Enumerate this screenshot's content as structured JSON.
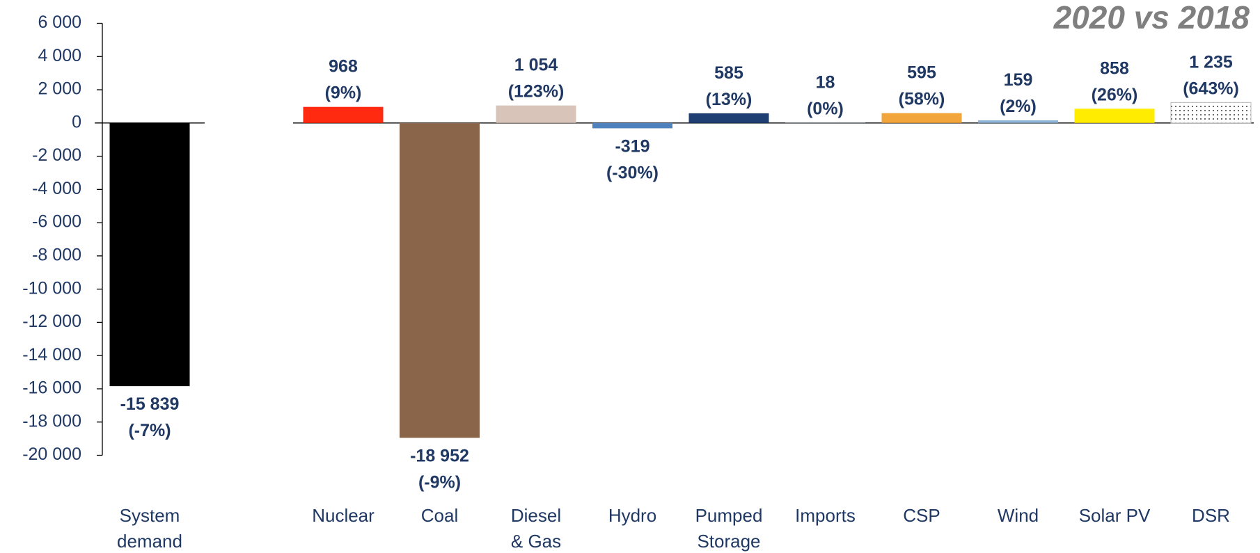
{
  "chart_data": {
    "type": "bar",
    "title": "2020 vs 2018",
    "categories": [
      "System\ndemand",
      "Nuclear",
      "Coal",
      "Diesel\n& Gas",
      "Hydro",
      "Pumped\nStorage",
      "Imports",
      "CSP",
      "Wind",
      "Solar PV",
      "DSR"
    ],
    "values": [
      -15839,
      968,
      -18952,
      1054,
      -319,
      585,
      18,
      595,
      159,
      858,
      1235
    ],
    "value_labels": [
      "-15 839\n(-7%)",
      "968\n(9%)",
      "-18 952\n(-9%)",
      "1 054\n(123%)",
      "-319\n(-30%)",
      "585\n(13%)",
      "18\n(0%)",
      "595\n(58%)",
      "159\n(2%)",
      "858\n(26%)",
      "1 235\n(643%)"
    ],
    "colors": [
      "#000000",
      "#ff2a10",
      "#8a6549",
      "#d8c4b8",
      "#4f81bd",
      "#1f3f73",
      "#9aa7b5",
      "#f2a53a",
      "#8fb4d8",
      "#ffec00",
      "#ffffff"
    ],
    "patterns": [
      null,
      null,
      null,
      null,
      null,
      null,
      null,
      null,
      null,
      null,
      "dots"
    ],
    "ylim": [
      -20000,
      6000
    ],
    "yticks": [
      {
        "value": 6000,
        "label": "6 000"
      },
      {
        "value": 4000,
        "label": "4 000"
      },
      {
        "value": 2000,
        "label": "2 000"
      },
      0,
      {
        "value": -2000,
        "label": "-2 000"
      },
      {
        "value": -4000,
        "label": "-4 000"
      },
      {
        "value": -6000,
        "label": "-6 000"
      },
      {
        "value": -8000,
        "label": "-8 000"
      },
      {
        "value": -10000,
        "label": "-10 000"
      },
      {
        "value": -12000,
        "label": "-12 000"
      },
      {
        "value": -14000,
        "label": "-14 000"
      },
      {
        "value": -16000,
        "label": "-16 000"
      },
      {
        "value": -18000,
        "label": "-18 000"
      },
      {
        "value": -20000,
        "label": "-20 000"
      }
    ]
  }
}
